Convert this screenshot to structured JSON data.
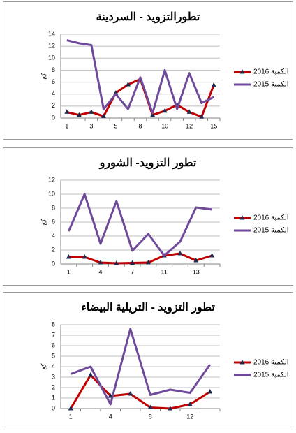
{
  "chart_data": [
    {
      "type": "line",
      "title": "تطورالتزويد - السردينة",
      "y_label": "كغ",
      "categories": [
        "1",
        null,
        "3",
        null,
        "5",
        null,
        "8",
        null,
        "10",
        null,
        "12",
        null,
        "15"
      ],
      "series": [
        {
          "name": "الكمية 2016",
          "color": "#c00000",
          "marker": "triangle",
          "marker_color": "#1f2a50",
          "values": [
            1,
            0.5,
            1,
            0.3,
            4.2,
            5.6,
            6.5,
            0.5,
            1.2,
            2.2,
            1,
            0.2,
            5.5
          ]
        },
        {
          "name": "الكمية 2015",
          "color": "#6f4a9a",
          "values": [
            13,
            12.5,
            12.2,
            1.5,
            4,
            1.5,
            6.8,
            0.8,
            8,
            1.5,
            7.5,
            2.5,
            3.5
          ]
        }
      ],
      "ylim": [
        0,
        14
      ],
      "yticks": [
        0,
        2,
        4,
        6,
        8,
        10,
        12,
        14
      ],
      "grid": true,
      "legend": "right"
    },
    {
      "type": "line",
      "title": "تطور التزويد- الشورو",
      "y_label": "كغ",
      "categories": [
        "1",
        null,
        "4",
        null,
        "7",
        null,
        "11",
        null,
        "13",
        null
      ],
      "series": [
        {
          "name": "الكمية 2016",
          "color": "#c00000",
          "marker": "triangle",
          "marker_color": "#1f2a50",
          "values": [
            1,
            1,
            0.2,
            0.1,
            0.15,
            0.2,
            1.2,
            1.5,
            0.5,
            1.2
          ]
        },
        {
          "name": "الكمية 2015",
          "color": "#6f4a9a",
          "values": [
            4.7,
            10,
            2.9,
            9,
            1.9,
            4.3,
            1.2,
            3.2,
            8.1,
            7.8
          ]
        }
      ],
      "ylim": [
        0,
        12
      ],
      "yticks": [
        0,
        2,
        4,
        6,
        8,
        10,
        12
      ],
      "grid": true,
      "legend": "right"
    },
    {
      "type": "line",
      "title": "تطور التزويد - التريلية البيضاء",
      "y_label": "كغ",
      "categories": [
        "1",
        null,
        "4",
        null,
        "8",
        null,
        "12",
        null
      ],
      "series": [
        {
          "name": "الكمية 2016",
          "color": "#c00000",
          "marker": "triangle",
          "marker_color": "#1f2a50",
          "values": [
            0,
            3.2,
            1.2,
            1.4,
            0.1,
            0,
            0.4,
            1.6
          ]
        },
        {
          "name": "الكمية 2015",
          "color": "#6f4a9a",
          "values": [
            3.3,
            4,
            0.4,
            7.6,
            1.3,
            1.8,
            1.5,
            4.2
          ]
        }
      ],
      "ylim": [
        0,
        8
      ],
      "yticks": [
        0,
        1,
        2,
        3,
        4,
        5,
        6,
        7,
        8
      ],
      "grid": true,
      "legend": "right"
    }
  ]
}
